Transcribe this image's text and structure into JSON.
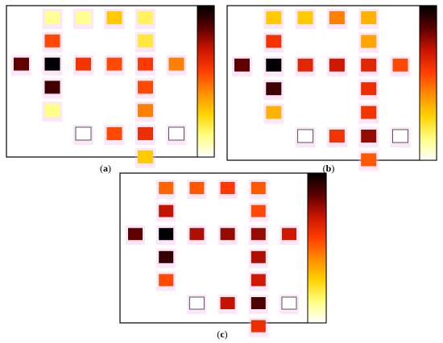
{
  "colors": {
    "panel_border": "#000000",
    "empty_cell_border": "#555555",
    "halo": "#f7b8f0",
    "colorbar_stops": [
      "#000000",
      "#5a0000",
      "#c81400",
      "#ff3c00",
      "#ff8c00",
      "#ffd200",
      "#ffff80",
      "#ffffff"
    ]
  },
  "chart_data": [
    {
      "type": "heatmap",
      "panel_label": "(a)",
      "note": "",
      "cells": [
        {
          "row": 0,
          "col": 1,
          "value": 0.12
        },
        {
          "row": 0,
          "col": 2,
          "value": 0.12
        },
        {
          "row": 0,
          "col": 3,
          "value": 0.3
        },
        {
          "row": 0,
          "col": 4,
          "value": 0.18
        },
        {
          "row": 1,
          "col": 1,
          "value": 0.55
        },
        {
          "row": 1,
          "col": 4,
          "value": 0.22
        },
        {
          "row": 2,
          "col": 0,
          "value": 0.85
        },
        {
          "row": 2,
          "col": 1,
          "value": 1.0
        },
        {
          "row": 2,
          "col": 2,
          "value": 0.6
        },
        {
          "row": 2,
          "col": 3,
          "value": 0.55
        },
        {
          "row": 2,
          "col": 4,
          "value": 0.58
        },
        {
          "row": 2,
          "col": 5,
          "value": 0.45
        },
        {
          "row": 3,
          "col": 1,
          "value": 0.9
        },
        {
          "row": 3,
          "col": 4,
          "value": 0.55
        },
        {
          "row": 4,
          "col": 1,
          "value": 0.14
        },
        {
          "row": 4,
          "col": 4,
          "value": 0.45
        },
        {
          "row": 5,
          "col": 2,
          "value": null
        },
        {
          "row": 5,
          "col": 3,
          "value": 0.55
        },
        {
          "row": 5,
          "col": 4,
          "value": 0.62
        },
        {
          "row": 5,
          "col": 5,
          "value": null
        },
        {
          "row": 6,
          "col": 4,
          "value": 0.3
        }
      ]
    },
    {
      "type": "heatmap",
      "panel_label": "(b)",
      "note": "",
      "cells": [
        {
          "row": 0,
          "col": 1,
          "value": 0.3
        },
        {
          "row": 0,
          "col": 2,
          "value": 0.3
        },
        {
          "row": 0,
          "col": 3,
          "value": 0.45
        },
        {
          "row": 0,
          "col": 4,
          "value": 0.35
        },
        {
          "row": 1,
          "col": 1,
          "value": 0.6
        },
        {
          "row": 1,
          "col": 4,
          "value": 0.38
        },
        {
          "row": 2,
          "col": 0,
          "value": 0.85
        },
        {
          "row": 2,
          "col": 1,
          "value": 1.0
        },
        {
          "row": 2,
          "col": 2,
          "value": 0.65
        },
        {
          "row": 2,
          "col": 3,
          "value": 0.7
        },
        {
          "row": 2,
          "col": 4,
          "value": 0.65
        },
        {
          "row": 2,
          "col": 5,
          "value": 0.55
        },
        {
          "row": 3,
          "col": 1,
          "value": 0.9
        },
        {
          "row": 3,
          "col": 4,
          "value": 0.62
        },
        {
          "row": 4,
          "col": 1,
          "value": 0.35
        },
        {
          "row": 4,
          "col": 4,
          "value": 0.6
        },
        {
          "row": 5,
          "col": 2,
          "value": null
        },
        {
          "row": 5,
          "col": 3,
          "value": 0.6
        },
        {
          "row": 5,
          "col": 4,
          "value": 0.78
        },
        {
          "row": 5,
          "col": 5,
          "value": null
        },
        {
          "row": 6,
          "col": 4,
          "value": 0.52
        }
      ]
    },
    {
      "type": "heatmap",
      "panel_label": "(c)",
      "note": "",
      "cells": [
        {
          "row": 0,
          "col": 1,
          "value": 0.5
        },
        {
          "row": 0,
          "col": 2,
          "value": 0.52
        },
        {
          "row": 0,
          "col": 3,
          "value": 0.58
        },
        {
          "row": 0,
          "col": 4,
          "value": 0.52
        },
        {
          "row": 1,
          "col": 1,
          "value": 0.72
        },
        {
          "row": 1,
          "col": 4,
          "value": 0.55
        },
        {
          "row": 2,
          "col": 0,
          "value": 0.85
        },
        {
          "row": 2,
          "col": 1,
          "value": 1.0
        },
        {
          "row": 2,
          "col": 2,
          "value": 0.75
        },
        {
          "row": 2,
          "col": 3,
          "value": 0.78
        },
        {
          "row": 2,
          "col": 4,
          "value": 0.78
        },
        {
          "row": 2,
          "col": 5,
          "value": 0.7
        },
        {
          "row": 3,
          "col": 1,
          "value": 0.92
        },
        {
          "row": 3,
          "col": 4,
          "value": 0.75
        },
        {
          "row": 4,
          "col": 1,
          "value": 0.55
        },
        {
          "row": 4,
          "col": 4,
          "value": 0.7
        },
        {
          "row": 5,
          "col": 2,
          "value": null
        },
        {
          "row": 5,
          "col": 3,
          "value": 0.72
        },
        {
          "row": 5,
          "col": 4,
          "value": 0.88
        },
        {
          "row": 5,
          "col": 5,
          "value": null
        },
        {
          "row": 6,
          "col": 4,
          "value": 0.62
        }
      ]
    }
  ],
  "captions": [
    {
      "open": "(",
      "letter": "a",
      "close": ")"
    },
    {
      "open": "(",
      "letter": "b",
      "close": ")"
    },
    {
      "open": "(",
      "letter": "c",
      "close": ")"
    }
  ]
}
